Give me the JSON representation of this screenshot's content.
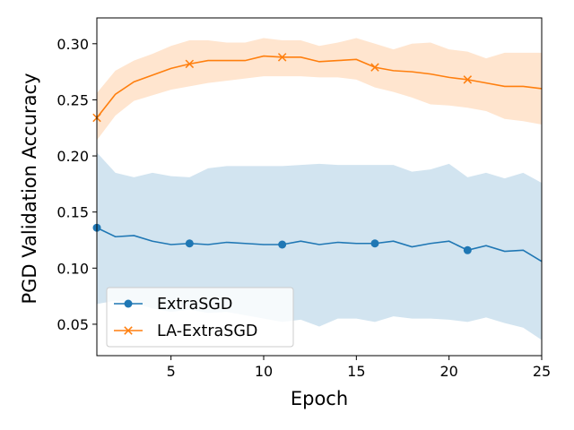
{
  "chart_data": {
    "type": "line",
    "title": "",
    "xlabel": "Epoch",
    "ylabel": "PGD Validation Accuracy",
    "xlim": [
      1,
      25
    ],
    "ylim": [
      0.022,
      0.323
    ],
    "xticks": [
      5,
      10,
      15,
      20,
      25
    ],
    "yticks": [
      0.05,
      0.1,
      0.15,
      0.2,
      0.25,
      0.3
    ],
    "ytick_labels": [
      "0.05",
      "0.10",
      "0.15",
      "0.20",
      "0.25",
      "0.30"
    ],
    "grid": false,
    "legend_position": "lower-left",
    "x": [
      1,
      2,
      3,
      4,
      5,
      6,
      7,
      8,
      9,
      10,
      11,
      12,
      13,
      14,
      15,
      16,
      17,
      18,
      19,
      20,
      21,
      22,
      23,
      24,
      25
    ],
    "series": [
      {
        "name": "ExtraSGD",
        "color": "#1f77b4",
        "band_color": "#1f77b4",
        "marker": "circle",
        "marker_every": 5,
        "values": [
          0.136,
          0.128,
          0.129,
          0.124,
          0.121,
          0.122,
          0.121,
          0.123,
          0.122,
          0.121,
          0.121,
          0.124,
          0.121,
          0.123,
          0.122,
          0.122,
          0.124,
          0.119,
          0.122,
          0.124,
          0.116,
          0.12,
          0.115,
          0.116,
          0.106
        ],
        "lower": [
          0.068,
          0.071,
          0.069,
          0.064,
          0.061,
          0.063,
          0.06,
          0.061,
          0.058,
          0.055,
          0.052,
          0.054,
          0.048,
          0.055,
          0.055,
          0.052,
          0.057,
          0.055,
          0.055,
          0.054,
          0.052,
          0.056,
          0.051,
          0.047,
          0.036
        ],
        "upper": [
          0.203,
          0.185,
          0.181,
          0.185,
          0.182,
          0.181,
          0.189,
          0.191,
          0.191,
          0.191,
          0.191,
          0.192,
          0.193,
          0.192,
          0.192,
          0.192,
          0.192,
          0.186,
          0.188,
          0.193,
          0.181,
          0.185,
          0.18,
          0.185,
          0.176
        ]
      },
      {
        "name": "LA-ExtraSGD",
        "color": "#ff7f0e",
        "band_color": "#ff7f0e",
        "marker": "x",
        "marker_every": 5,
        "values": [
          0.234,
          0.255,
          0.266,
          0.272,
          0.278,
          0.282,
          0.285,
          0.285,
          0.285,
          0.289,
          0.288,
          0.288,
          0.284,
          0.285,
          0.286,
          0.279,
          0.276,
          0.275,
          0.273,
          0.27,
          0.268,
          0.265,
          0.262,
          0.262,
          0.26
        ],
        "lower": [
          0.214,
          0.236,
          0.249,
          0.254,
          0.259,
          0.262,
          0.265,
          0.267,
          0.269,
          0.271,
          0.271,
          0.271,
          0.27,
          0.27,
          0.268,
          0.261,
          0.257,
          0.252,
          0.246,
          0.245,
          0.243,
          0.24,
          0.233,
          0.231,
          0.228
        ],
        "upper": [
          0.256,
          0.276,
          0.285,
          0.291,
          0.298,
          0.303,
          0.303,
          0.301,
          0.301,
          0.305,
          0.303,
          0.303,
          0.298,
          0.301,
          0.305,
          0.3,
          0.295,
          0.3,
          0.301,
          0.295,
          0.293,
          0.287,
          0.292,
          0.292,
          0.292
        ]
      }
    ]
  }
}
